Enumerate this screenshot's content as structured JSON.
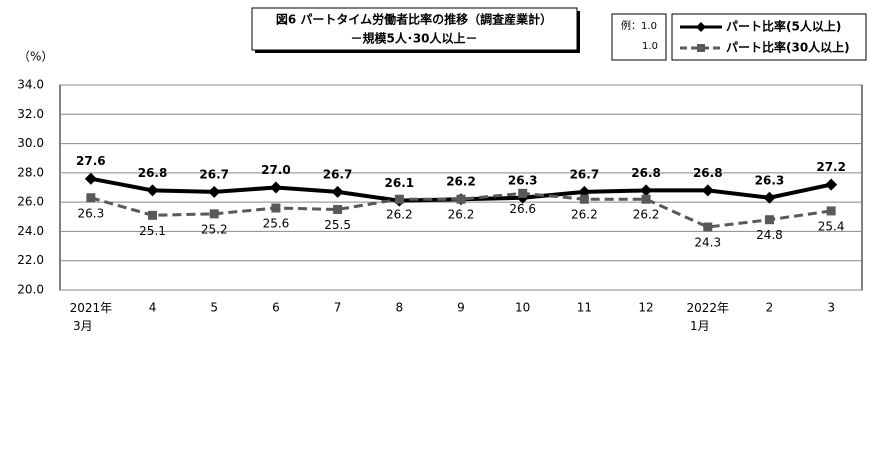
{
  "chart_data": {
    "type": "line",
    "title": "図6  パートタイム労働者比率の推移（調査産業計）",
    "subtitle": "－規模5人･30人以上－",
    "y_label": "（%）",
    "legend_example": {
      "title": "例：1.0",
      "below": "1.0"
    },
    "categories": [
      "2021年\n3月",
      "4",
      "5",
      "6",
      "7",
      "8",
      "9",
      "10",
      "11",
      "12",
      "2022年\n1月",
      "2",
      "3"
    ],
    "series": [
      {
        "name": "パート比率(5人以上)",
        "color": "#000000",
        "values": [
          27.6,
          26.8,
          26.7,
          27.0,
          26.7,
          26.1,
          26.2,
          26.3,
          26.7,
          26.8,
          26.8,
          26.3,
          27.2
        ],
        "value_labels": [
          "27.6",
          "26.8",
          "26.7",
          "27.0",
          "26.7",
          "26.1",
          "26.2",
          "26.3",
          "26.7",
          "26.8",
          "26.8",
          "26.3",
          "27.2"
        ]
      },
      {
        "name": "パート比率(30人以上)",
        "color": "#595959",
        "values": [
          26.3,
          25.1,
          25.2,
          25.6,
          25.5,
          26.2,
          26.2,
          26.6,
          26.2,
          26.2,
          24.3,
          24.8,
          25.4
        ],
        "value_labels": [
          "26.3",
          "25.1",
          "25.2",
          "25.6",
          "25.5",
          "26.2",
          "26.2",
          "26.6",
          "26.2",
          "26.2",
          "24.3",
          "24.8",
          "25.4"
        ]
      }
    ],
    "ylim": [
      20,
      34
    ],
    "yticks": [
      {
        "value": 20,
        "label": "20.0"
      },
      {
        "value": 22,
        "label": "22.0"
      },
      {
        "value": 24,
        "label": "24.0"
      },
      {
        "value": 26,
        "label": "26.0"
      },
      {
        "value": 28,
        "label": "28.0"
      },
      {
        "value": 30,
        "label": "30.0"
      },
      {
        "value": 32,
        "label": "32.0"
      },
      {
        "value": 34,
        "label": "34.0"
      }
    ],
    "grid": true
  }
}
